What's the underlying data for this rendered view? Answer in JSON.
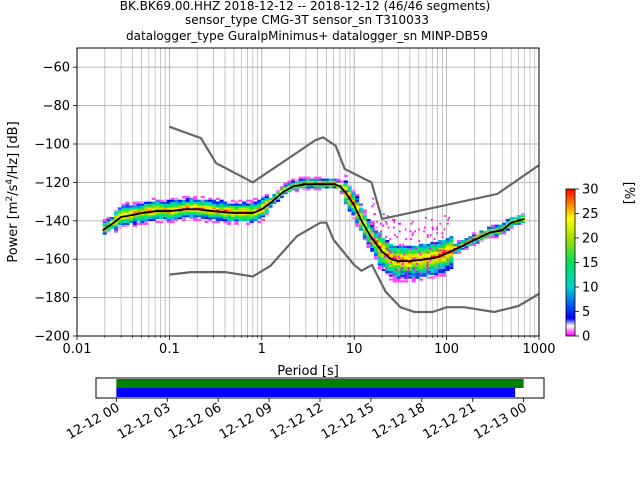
{
  "title_lines": [
    "BK.BK69.00.HHZ   2018-12-12 -- 2018-12-12  (46/46 segments)",
    "sensor_type CMG-3T sensor_sn T310033",
    "datalogger_type GuralpMinimus+ datalogger_sn MINP-DB59"
  ],
  "chart_data": {
    "type": "heatmap",
    "title": "BK.BK69.00.HHZ   2018-12-12 -- 2018-12-12  (46/46 segments)",
    "xlabel": "Period [s]",
    "ylabel": "Power [m²/s⁴/Hz] [dB]",
    "ylabel_parts": {
      "a": "Power [m",
      "b": "2",
      "c": "/s",
      "d": "4",
      "e": "/Hz] [dB]"
    },
    "x_scale": "log",
    "xlim": [
      0.01,
      1000
    ],
    "ylim": [
      -200,
      -50
    ],
    "x_ticks": [
      0.01,
      0.1,
      1,
      10,
      100,
      1000
    ],
    "x_tick_labels": [
      "0.01",
      "0.1",
      "1",
      "10",
      "100",
      "1000"
    ],
    "y_ticks": [
      -200,
      -180,
      -160,
      -140,
      -120,
      -100,
      -80,
      -60
    ],
    "y_tick_labels": [
      "−200",
      "−180",
      "−160",
      "−140",
      "−120",
      "−100",
      "−80",
      "−60"
    ],
    "grid": true,
    "colorbar": {
      "label": "[%]",
      "range": [
        0,
        30
      ],
      "ticks": [
        0,
        5,
        10,
        15,
        20,
        25,
        30
      ],
      "tick_labels": [
        "0",
        "5",
        "10",
        "15",
        "20",
        "25",
        "30"
      ]
    },
    "mode_curve": [
      [
        0.019,
        -145
      ],
      [
        0.025,
        -141
      ],
      [
        0.03,
        -138
      ],
      [
        0.04,
        -137
      ],
      [
        0.05,
        -136
      ],
      [
        0.07,
        -135
      ],
      [
        0.1,
        -135
      ],
      [
        0.15,
        -134
      ],
      [
        0.2,
        -134
      ],
      [
        0.3,
        -135
      ],
      [
        0.5,
        -136
      ],
      [
        0.8,
        -136
      ],
      [
        1.0,
        -134
      ],
      [
        1.3,
        -130
      ],
      [
        1.7,
        -125
      ],
      [
        2.2,
        -122
      ],
      [
        3.0,
        -121
      ],
      [
        4.0,
        -121
      ],
      [
        5.0,
        -121
      ],
      [
        6.0,
        -121
      ],
      [
        7.0,
        -122
      ],
      [
        8.0,
        -125
      ],
      [
        10,
        -132
      ],
      [
        12,
        -140
      ],
      [
        15,
        -148
      ],
      [
        20,
        -156
      ],
      [
        25,
        -160
      ],
      [
        30,
        -161
      ],
      [
        40,
        -161
      ],
      [
        60,
        -160
      ],
      [
        80,
        -159
      ],
      [
        100,
        -157
      ],
      [
        150,
        -153
      ],
      [
        200,
        -150
      ],
      [
        300,
        -146
      ],
      [
        400,
        -145
      ],
      [
        500,
        -141
      ],
      [
        700,
        -139
      ]
    ],
    "nhnm": [
      [
        0.1,
        -91
      ],
      [
        0.22,
        -97
      ],
      [
        0.32,
        -110
      ],
      [
        0.8,
        -120
      ],
      [
        3.8,
        -98
      ],
      [
        4.6,
        -96.5
      ],
      [
        6.3,
        -101
      ],
      [
        7.9,
        -113
      ],
      [
        15.4,
        -120
      ],
      [
        20,
        -139
      ],
      [
        354.8,
        -126
      ],
      [
        1000,
        -111
      ]
    ],
    "nlnm": [
      [
        0.1,
        -168
      ],
      [
        0.17,
        -166.7
      ],
      [
        0.4,
        -166.7
      ],
      [
        0.8,
        -169
      ],
      [
        1.24,
        -163.5
      ],
      [
        2.4,
        -148
      ],
      [
        4.3,
        -141
      ],
      [
        5.0,
        -141
      ],
      [
        6.0,
        -150
      ],
      [
        10,
        -163
      ],
      [
        12,
        -166
      ],
      [
        15.6,
        -163
      ],
      [
        21.9,
        -177
      ],
      [
        31.6,
        -185
      ],
      [
        45,
        -187.5
      ],
      [
        70,
        -187.5
      ],
      [
        101,
        -185
      ],
      [
        154,
        -185
      ],
      [
        328,
        -187.5
      ],
      [
        600,
        -184.4
      ],
      [
        1000,
        -178
      ]
    ],
    "histogram_x_range": [
      0.019,
      700
    ]
  },
  "timeline": {
    "tick_labels": [
      "12-12 00",
      "12-12 03",
      "12-12 06",
      "12-12 09",
      "12-12 12",
      "12-12 15",
      "12-12 18",
      "12-12 21",
      "12-13 00"
    ],
    "green_bar": {
      "start_hours": 0,
      "end_hours": 24.0
    },
    "blue_bar": {
      "start_hours": 0,
      "end_hours": 23.5
    },
    "axis_hours": [
      -1.2,
      25.2
    ],
    "colors": {
      "green": "#008000",
      "blue": "#0000ff"
    }
  },
  "colors": {
    "mode_line": "#000000",
    "noise_models": "#666666",
    "grid": "#b0b0b0"
  }
}
